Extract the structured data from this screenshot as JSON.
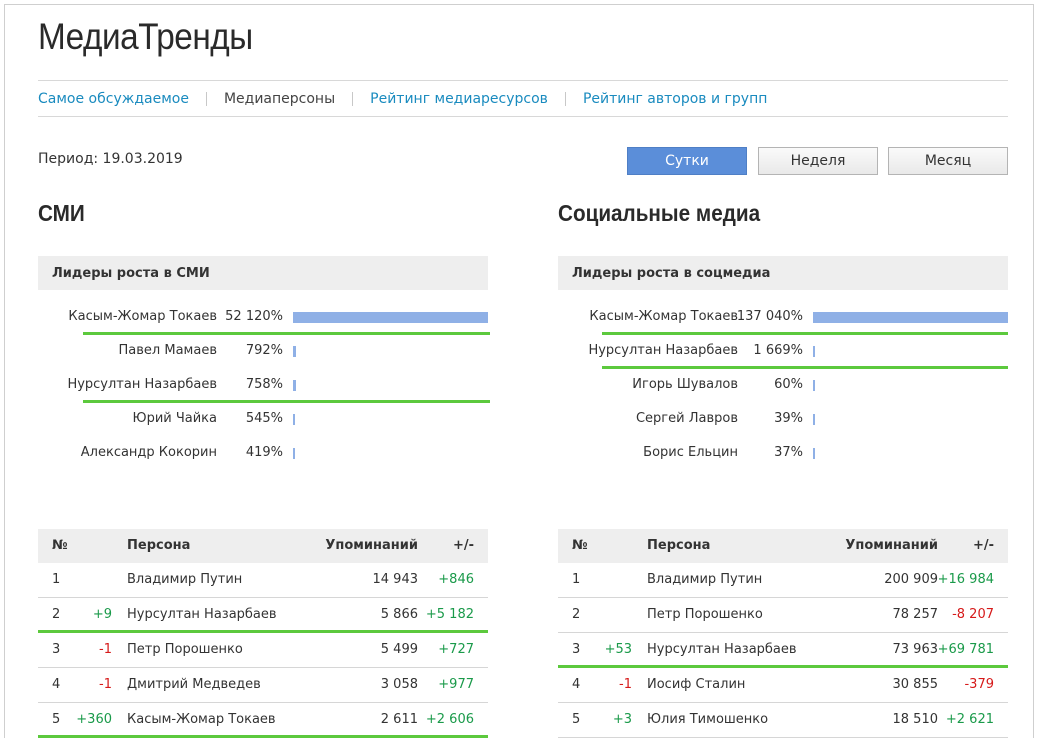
{
  "header": {
    "title": "МедиаТренды"
  },
  "nav": {
    "items": [
      {
        "label": "Самое обсуждаемое",
        "active": false
      },
      {
        "label": "Медиаперсоны",
        "active": true
      },
      {
        "label": "Рейтинг медиаресурсов",
        "active": false
      },
      {
        "label": "Рейтинг авторов и групп",
        "active": false
      }
    ]
  },
  "period": {
    "label": "Период: 19.03.2019"
  },
  "period_buttons": [
    {
      "label": "Сутки",
      "active": true
    },
    {
      "label": "Неделя",
      "active": false
    },
    {
      "label": "Месяц",
      "active": false
    }
  ],
  "colors": {
    "accent": "#5b8ed9",
    "link": "#1a8bbf",
    "highlight": "#5cc93d",
    "bar": "#8fb0e6",
    "positive": "#1a9a4a",
    "negative": "#d61a1a"
  },
  "smi": {
    "title": "СМИ",
    "leaders_title": "Лидеры роста в СМИ",
    "leaders": [
      {
        "name": "Касым-Жомар Токаев",
        "pct": "52 120%",
        "value": 52120,
        "highlight": true
      },
      {
        "name": "Павел Мамаев",
        "pct": "792%",
        "value": 792,
        "highlight": false
      },
      {
        "name": "Нурсултан Назарбаев",
        "pct": "758%",
        "value": 758,
        "highlight": true
      },
      {
        "name": "Юрий Чайка",
        "pct": "545%",
        "value": 545,
        "highlight": false
      },
      {
        "name": "Александр Кокорин",
        "pct": "419%",
        "value": 419,
        "highlight": false
      }
    ],
    "table": {
      "headers": {
        "num": "№",
        "person": "Персона",
        "mentions": "Упоминаний",
        "delta": "+/-"
      },
      "rows": [
        {
          "num": "1",
          "change": "",
          "name": "Владимир Путин",
          "mentions": "14 943",
          "delta": "+846",
          "highlight": false
        },
        {
          "num": "2",
          "change": "+9",
          "name": "Нурсултан Назарбаев",
          "mentions": "5 866",
          "delta": "+5 182",
          "highlight": true
        },
        {
          "num": "3",
          "change": "-1",
          "name": "Петр Порошенко",
          "mentions": "5 499",
          "delta": "+727",
          "highlight": false
        },
        {
          "num": "4",
          "change": "-1",
          "name": "Дмитрий Медведев",
          "mentions": "3 058",
          "delta": "+977",
          "highlight": false
        },
        {
          "num": "5",
          "change": "+360",
          "name": "Касым-Жомар Токаев",
          "mentions": "2 611",
          "delta": "+2 606",
          "highlight": true
        }
      ]
    }
  },
  "social": {
    "title": "Социальные медиа",
    "leaders_title": "Лидеры роста в соцмедиа",
    "leaders": [
      {
        "name": "Касым-Жомар Токаев",
        "pct": "137 040%",
        "value": 137040,
        "highlight": true
      },
      {
        "name": "Нурсултан Назарбаев",
        "pct": "1 669%",
        "value": 1669,
        "highlight": true
      },
      {
        "name": "Игорь Шувалов",
        "pct": "60%",
        "value": 60,
        "highlight": false
      },
      {
        "name": "Сергей Лавров",
        "pct": "39%",
        "value": 39,
        "highlight": false
      },
      {
        "name": "Борис Ельцин",
        "pct": "37%",
        "value": 37,
        "highlight": false
      }
    ],
    "table": {
      "headers": {
        "num": "№",
        "person": "Персона",
        "mentions": "Упоминаний",
        "delta": "+/-"
      },
      "rows": [
        {
          "num": "1",
          "change": "",
          "name": "Владимир Путин",
          "mentions": "200 909",
          "delta": "+16 984",
          "highlight": false
        },
        {
          "num": "2",
          "change": "",
          "name": "Петр Порошенко",
          "mentions": "78 257",
          "delta": "-8 207",
          "highlight": false
        },
        {
          "num": "3",
          "change": "+53",
          "name": "Нурсултан Назарбаев",
          "mentions": "73 963",
          "delta": "+69 781",
          "highlight": true
        },
        {
          "num": "4",
          "change": "-1",
          "name": "Иосиф Сталин",
          "mentions": "30 855",
          "delta": "-379",
          "highlight": false
        },
        {
          "num": "5",
          "change": "+3",
          "name": "Юлия Тимошенко",
          "mentions": "18 510",
          "delta": "+2 621",
          "highlight": false
        }
      ]
    }
  }
}
